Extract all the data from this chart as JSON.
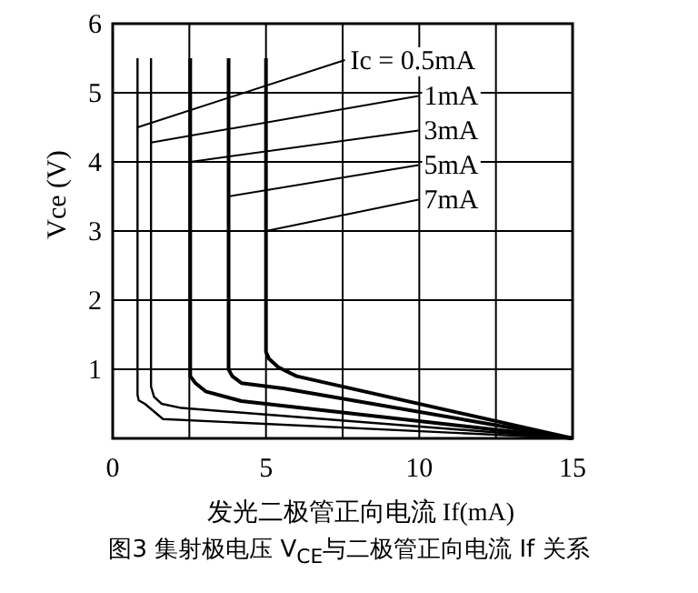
{
  "chart_data": {
    "type": "line",
    "ylabel": "Vce (V)",
    "xlabel": "发光二极管正向电流 If(mA)",
    "xlim": [
      0,
      15
    ],
    "xticks": [
      0,
      {
        "value": 2.5,
        "label": null
      },
      5,
      {
        "value": 7.5,
        "label": null
      },
      10,
      {
        "value": 12.5,
        "label": null
      },
      15
    ],
    "ylim": [
      0,
      6
    ],
    "yticks": [
      {
        "value": 0,
        "label": null
      },
      1,
      2,
      3,
      4,
      5,
      6
    ],
    "grid": true,
    "marker": "none",
    "line_style": "solid",
    "series": [
      {
        "color": "#000000",
        "x": [
          0.81,
          0.81,
          0.85,
          1.05,
          1.64,
          15
        ],
        "values": [
          5.5,
          0.63,
          0.55,
          0.5,
          0.28,
          0
        ]
      },
      {
        "color": "#000000",
        "x": [
          1.25,
          1.25,
          1.35,
          1.6,
          2.24,
          15
        ],
        "values": [
          5.5,
          0.75,
          0.6,
          0.5,
          0.44,
          0
        ]
      },
      {
        "color": "#000000",
        "x": [
          2.53,
          2.53,
          2.7,
          3.03,
          4.2,
          15
        ],
        "values": [
          5.5,
          0.9,
          0.8,
          0.68,
          0.54,
          0
        ]
      },
      {
        "color": "#000000",
        "x": [
          3.78,
          3.78,
          3.9,
          4.2,
          5.6,
          15
        ],
        "values": [
          5.5,
          1.0,
          0.9,
          0.8,
          0.72,
          0
        ]
      },
      {
        "color": "#000000",
        "x": [
          5.0,
          5.0,
          5.1,
          5.4,
          6.0,
          15
        ],
        "values": [
          5.5,
          1.25,
          1.15,
          1.03,
          0.9,
          0
        ]
      }
    ],
    "annotations": [
      {
        "text": "Ic = 0.5mA",
        "x": 0.81,
        "y": 4.5
      },
      {
        "text": "1mA",
        "x": 1.25,
        "y": 4.28
      },
      {
        "text": "3mA",
        "x": 2.53,
        "y": 4.0
      },
      {
        "text": "5mA",
        "x": 3.78,
        "y": 3.5
      },
      {
        "text": "7mA",
        "x": 5.0,
        "y": 3.0
      },
      "图3 集射极电压 V$_{CE}$与二极管正向电流 If 关系"
    ]
  }
}
